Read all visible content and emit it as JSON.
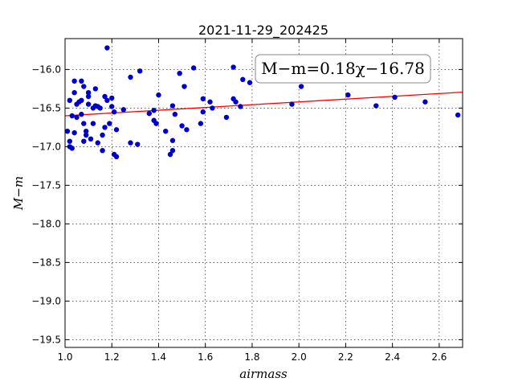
{
  "chart_data": {
    "type": "scatter",
    "title": "2021-11-29_202425",
    "xlabel": "airmass",
    "ylabel": "M−m",
    "xlim": [
      1.0,
      2.7
    ],
    "ylim": [
      -19.6,
      -15.6
    ],
    "x_ticks": [
      "1.0",
      "1.2",
      "1.4",
      "1.6",
      "1.8",
      "2.0",
      "2.2",
      "2.4",
      "2.6"
    ],
    "y_ticks": [
      "−16.0",
      "−16.5",
      "−17.0",
      "−17.5",
      "−18.0",
      "−18.5",
      "−19.0",
      "−19.5"
    ],
    "grid": true,
    "annotation": "M−m=0.18χ−16.78",
    "fit": {
      "slope": 0.18,
      "intercept": -16.78,
      "color": "#ff0000"
    },
    "point_color": "#0000cc",
    "points": [
      [
        1.01,
        -16.8
      ],
      [
        1.02,
        -16.93
      ],
      [
        1.02,
        -17.0
      ],
      [
        1.03,
        -17.02
      ],
      [
        1.02,
        -16.4
      ],
      [
        1.03,
        -16.6
      ],
      [
        1.04,
        -16.15
      ],
      [
        1.04,
        -16.3
      ],
      [
        1.04,
        -16.82
      ],
      [
        1.05,
        -16.62
      ],
      [
        1.05,
        -16.45
      ],
      [
        1.06,
        -16.42
      ],
      [
        1.07,
        -16.15
      ],
      [
        1.07,
        -16.4
      ],
      [
        1.07,
        -16.58
      ],
      [
        1.08,
        -16.22
      ],
      [
        1.08,
        -16.7
      ],
      [
        1.08,
        -16.93
      ],
      [
        1.09,
        -16.85
      ],
      [
        1.09,
        -16.8
      ],
      [
        1.1,
        -16.3
      ],
      [
        1.1,
        -16.35
      ],
      [
        1.1,
        -16.45
      ],
      [
        1.11,
        -16.9
      ],
      [
        1.12,
        -16.7
      ],
      [
        1.12,
        -16.5
      ],
      [
        1.13,
        -16.47
      ],
      [
        1.13,
        -16.25
      ],
      [
        1.14,
        -16.95
      ],
      [
        1.14,
        -16.48
      ],
      [
        1.15,
        -16.5
      ],
      [
        1.16,
        -16.85
      ],
      [
        1.16,
        -17.05
      ],
      [
        1.17,
        -16.75
      ],
      [
        1.17,
        -16.35
      ],
      [
        1.18,
        -16.4
      ],
      [
        1.18,
        -15.72
      ],
      [
        1.19,
        -16.7
      ],
      [
        1.2,
        -16.48
      ],
      [
        1.2,
        -16.37
      ],
      [
        1.21,
        -16.55
      ],
      [
        1.21,
        -17.1
      ],
      [
        1.22,
        -17.13
      ],
      [
        1.22,
        -16.78
      ],
      [
        1.25,
        -16.52
      ],
      [
        1.28,
        -16.95
      ],
      [
        1.28,
        -16.1
      ],
      [
        1.31,
        -16.97
      ],
      [
        1.32,
        -16.02
      ],
      [
        1.36,
        -16.57
      ],
      [
        1.38,
        -16.53
      ],
      [
        1.38,
        -16.66
      ],
      [
        1.39,
        -16.7
      ],
      [
        1.4,
        -16.33
      ],
      [
        1.43,
        -16.8
      ],
      [
        1.45,
        -17.1
      ],
      [
        1.46,
        -17.05
      ],
      [
        1.46,
        -16.92
      ],
      [
        1.46,
        -16.47
      ],
      [
        1.47,
        -16.58
      ],
      [
        1.49,
        -16.05
      ],
      [
        1.5,
        -16.73
      ],
      [
        1.51,
        -16.22
      ],
      [
        1.52,
        -16.78
      ],
      [
        1.55,
        -15.98
      ],
      [
        1.58,
        -16.7
      ],
      [
        1.59,
        -16.38
      ],
      [
        1.59,
        -16.55
      ],
      [
        1.62,
        -16.42
      ],
      [
        1.63,
        -16.5
      ],
      [
        1.69,
        -16.62
      ],
      [
        1.72,
        -15.97
      ],
      [
        1.72,
        -16.38
      ],
      [
        1.73,
        -16.42
      ],
      [
        1.75,
        -16.48
      ],
      [
        1.76,
        -16.13
      ],
      [
        1.79,
        -16.17
      ],
      [
        1.97,
        -16.45
      ],
      [
        2.01,
        -16.22
      ],
      [
        2.21,
        -16.33
      ],
      [
        2.33,
        -16.47
      ],
      [
        2.41,
        -16.36
      ],
      [
        2.54,
        -16.42
      ],
      [
        2.68,
        -16.59
      ]
    ]
  }
}
